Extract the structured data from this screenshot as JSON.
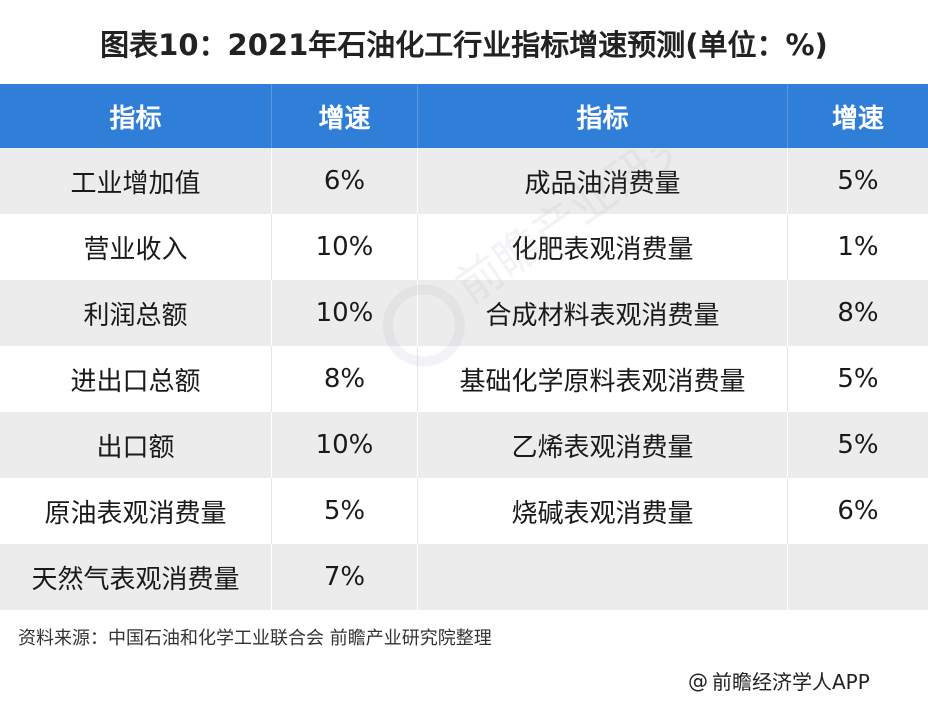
{
  "title": "图表10：2021年石油化工行业指标增速预测(单位：%)",
  "table": {
    "headers": [
      "指标",
      "增速",
      "指标",
      "增速"
    ],
    "rows": [
      [
        "工业增加值",
        "6%",
        "成品油消费量",
        "5%"
      ],
      [
        "营业收入",
        "10%",
        "化肥表观消费量",
        "1%"
      ],
      [
        "利润总额",
        "10%",
        "合成材料表观消费量",
        "8%"
      ],
      [
        "进出口总额",
        "8%",
        "基础化学原料表观消费量",
        "5%"
      ],
      [
        "出口额",
        "10%",
        "乙烯表观消费量",
        "5%"
      ],
      [
        "原油表观消费量",
        "5%",
        "烧碱表观消费量",
        "6%"
      ],
      [
        "天然气表观消费量",
        "7%",
        "",
        ""
      ]
    ]
  },
  "source": "资料来源：中国石油和化学工业联合会 前瞻产业研究院整理",
  "footer": {
    "at": "@",
    "brand": "前瞻经济学人APP"
  },
  "watermark": {
    "text": "前瞻产业研究院",
    "icon": "qianzhan-logo-icon"
  },
  "colors": {
    "header_bg": "#2f7ed8",
    "alt_row_bg": "#ececec"
  }
}
